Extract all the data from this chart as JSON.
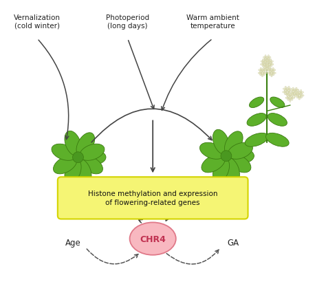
{
  "bg_color": "#ffffff",
  "labels": {
    "vernalization": "Vernalization\n(cold winter)",
    "photoperiod": "Photoperiod\n(long days)",
    "warm": "Warm ambient\ntemperature",
    "histone_box": "Histone methylation and expression\nof flowering-related genes",
    "chr4": "CHR4",
    "age": "Age",
    "ga": "GA"
  },
  "histone_box_color": "#f5f574",
  "histone_box_edge": "#d4d400",
  "chr4_color": "#f8b8c0",
  "chr4_edge": "#e07888",
  "arrow_color": "#444444",
  "dashed_color": "#555555",
  "text_color": "#222222",
  "leaf_color": "#5db02a",
  "leaf_edge": "#3a7a10",
  "stem_color": "#3a8010",
  "flower_color": "#f0f0dc",
  "flower_edge": "#c8c898"
}
